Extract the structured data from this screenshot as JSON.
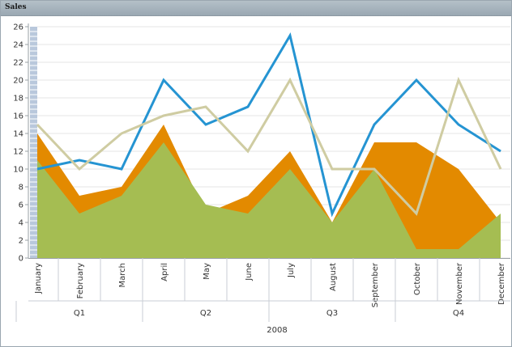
{
  "window": {
    "title": "Sales"
  },
  "chart_data": {
    "type": "area",
    "categories": [
      "January",
      "February",
      "March",
      "April",
      "May",
      "June",
      "July",
      "August",
      "September",
      "October",
      "November",
      "December"
    ],
    "series": [
      {
        "type": "area",
        "color": "#e38a00",
        "values": [
          14,
          7,
          8,
          15,
          5,
          7,
          12,
          4,
          13,
          13,
          10,
          4
        ]
      },
      {
        "type": "area",
        "color": "#a5bd52",
        "values": [
          11,
          5,
          7,
          13,
          6,
          5,
          10,
          4,
          10,
          1,
          1,
          5
        ]
      },
      {
        "type": "line",
        "color": "#2594d2",
        "values": [
          10,
          11,
          10,
          20,
          15,
          17,
          25,
          5,
          15,
          20,
          15,
          12
        ]
      },
      {
        "type": "line",
        "color": "#cfcca2",
        "values": [
          15,
          10,
          14,
          16,
          17,
          12,
          20,
          10,
          10,
          5,
          20,
          10
        ]
      }
    ],
    "y_ticks": [
      "0",
      "2",
      "4",
      "6",
      "8",
      "10",
      "12",
      "14",
      "16",
      "18",
      "20",
      "22",
      "24",
      "26"
    ],
    "ylim": [
      0,
      26
    ],
    "quarters": [
      {
        "label": "Q1",
        "start": 0,
        "end": 2
      },
      {
        "label": "Q2",
        "start": 3,
        "end": 5
      },
      {
        "label": "Q3",
        "start": 6,
        "end": 8
      },
      {
        "label": "Q4",
        "start": 9,
        "end": 11
      }
    ],
    "year_label": "2008",
    "grid": true
  }
}
